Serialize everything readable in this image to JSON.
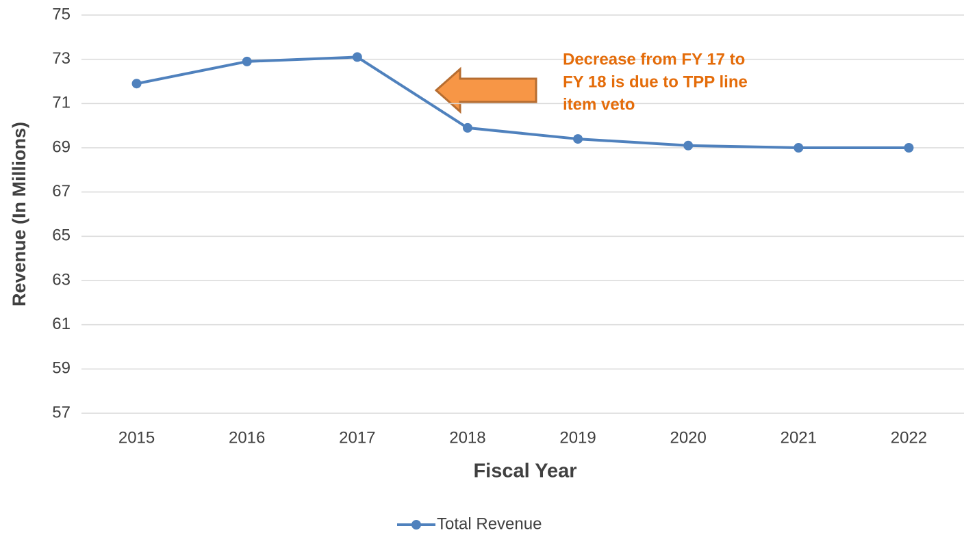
{
  "chart_data": {
    "type": "line",
    "x_label": "Fiscal Year",
    "y_label": "Revenue (In Millions)",
    "categories": [
      "2015",
      "2016",
      "2017",
      "2018",
      "2019",
      "2020",
      "2021",
      "2022"
    ],
    "series": [
      {
        "name": "Total Revenue",
        "color": "#4f81bd",
        "values": [
          71.9,
          72.9,
          73.1,
          69.9,
          69.4,
          69.1,
          69.0,
          69.0
        ]
      }
    ],
    "ylim": [
      57,
      75
    ],
    "yticks": [
      57,
      59,
      61,
      63,
      65,
      67,
      69,
      71,
      73,
      75
    ],
    "grid": true,
    "legend": "bottom",
    "annotation": [
      "Decrease from FY 17 to",
      "FY 18 is due to TPP line",
      "item veto"
    ],
    "annotation_color": "#e46c0a"
  }
}
